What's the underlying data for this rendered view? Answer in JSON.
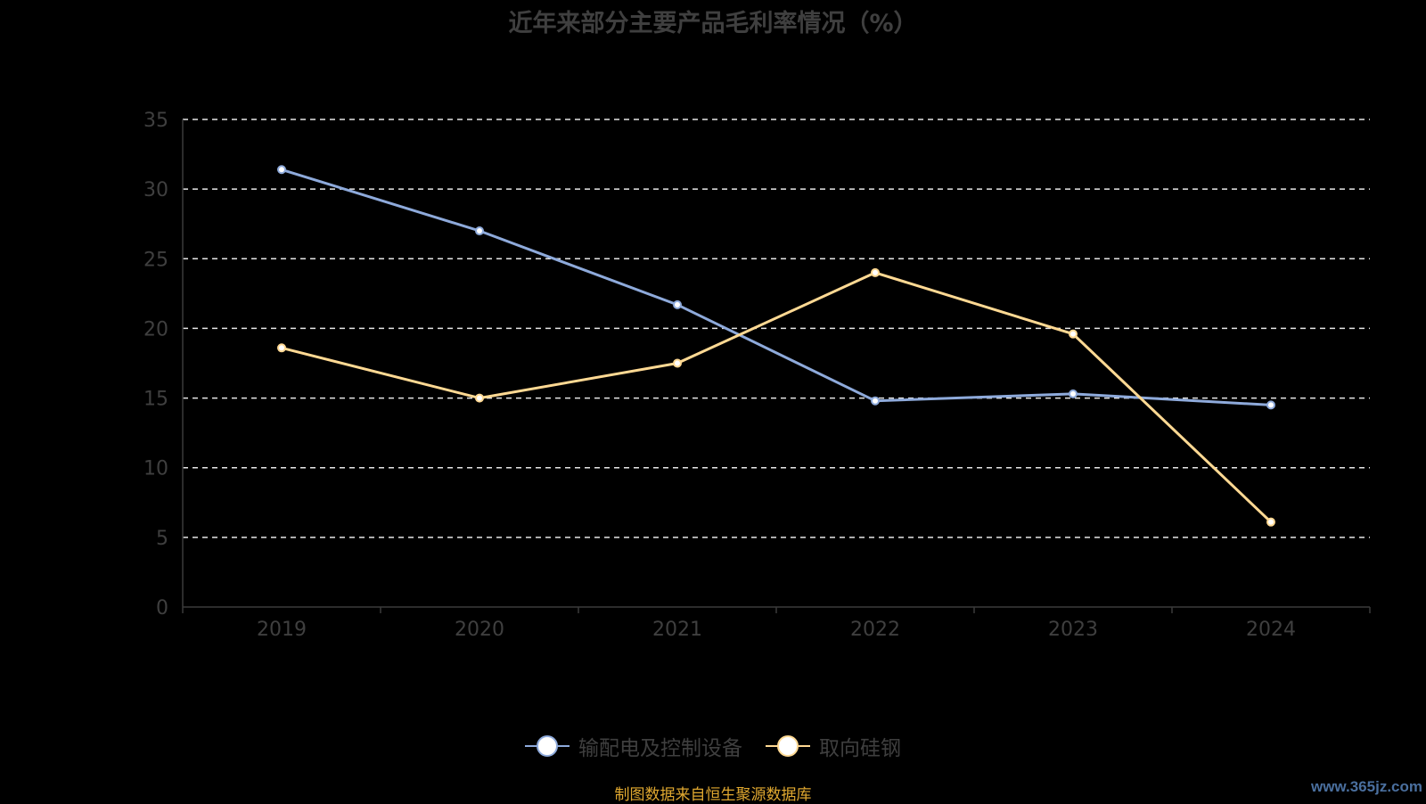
{
  "chart_data": {
    "type": "line",
    "title": "近年来部分主要产品毛利率情况（%）",
    "categories": [
      "2019",
      "2020",
      "2021",
      "2022",
      "2023",
      "2024"
    ],
    "series": [
      {
        "name": "输配电及控制设备",
        "values": [
          31.4,
          27.0,
          21.7,
          14.8,
          15.3,
          14.5
        ],
        "color": "#8eaadb"
      },
      {
        "name": "取向硅钢",
        "values": [
          18.6,
          15.0,
          17.5,
          24.0,
          19.6,
          6.1
        ],
        "color": "#ffd993"
      }
    ],
    "ylim": [
      0,
      35
    ],
    "yticks": [
      "0",
      "5",
      "10",
      "15",
      "20",
      "25",
      "30",
      "35"
    ],
    "grid": true,
    "legend": "bottom-center"
  },
  "footer": {
    "source": "制图数据来自恒生聚源数据库",
    "watermark": "www.365jz.com"
  }
}
